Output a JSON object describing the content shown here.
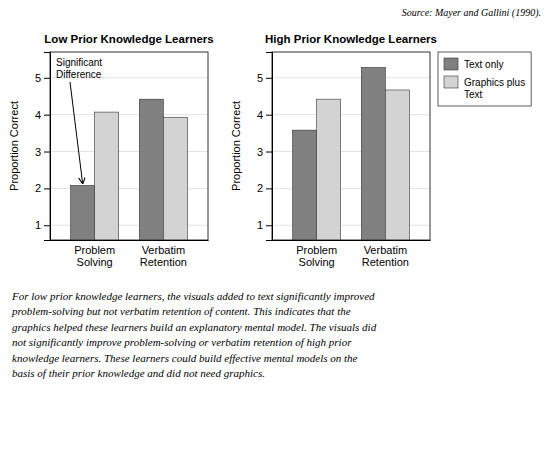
{
  "chart_data": [
    {
      "type": "bar",
      "title": "Low Prior Knowledge Learners",
      "ylabel": "Proportion Correct",
      "categories": [
        "Problem\nSolving",
        "Verbatim\nRetention"
      ],
      "series": [
        {
          "color": "#808080",
          "values": [
            2.08,
            4.42
          ]
        },
        {
          "color": "#d3d3d3",
          "values": [
            4.07,
            3.93
          ]
        }
      ],
      "ylim": [
        0.6,
        5.7
      ],
      "yticks": [
        1,
        2,
        3,
        4,
        5
      ],
      "grid": true,
      "annotation": "Significant\nDifference"
    },
    {
      "type": "bar",
      "title": "High Prior Knowledge Learners",
      "ylabel": "Proportion Correct",
      "categories": [
        "Problem\nSolving",
        "Verbatim\nRetention"
      ],
      "series": [
        {
          "name": "Text only",
          "color": "#808080",
          "values": [
            3.58,
            5.28
          ]
        },
        {
          "name": "Graphics plus\nText",
          "color": "#d3d3d3",
          "values": [
            4.42,
            4.67
          ]
        }
      ],
      "ylim": [
        0.6,
        5.7
      ],
      "yticks": [
        1,
        2,
        3,
        4,
        5
      ],
      "grid": true,
      "legend": "right"
    }
  ],
  "source": "Source: Mayer and Gallini (1990).",
  "caption": "For low prior knowledge learners, the visuals added to text significantly improved\nproblem-solving but not verbatim retention of content. This indicates that the\ngraphics helped these learners build an explanatory mental model. The visuals did\nnot significantly improve problem-solving or verbatim retention of high prior\nknowledge learners. These learners could build effective mental models on the\nbasis of their prior knowledge and did not need graphics."
}
